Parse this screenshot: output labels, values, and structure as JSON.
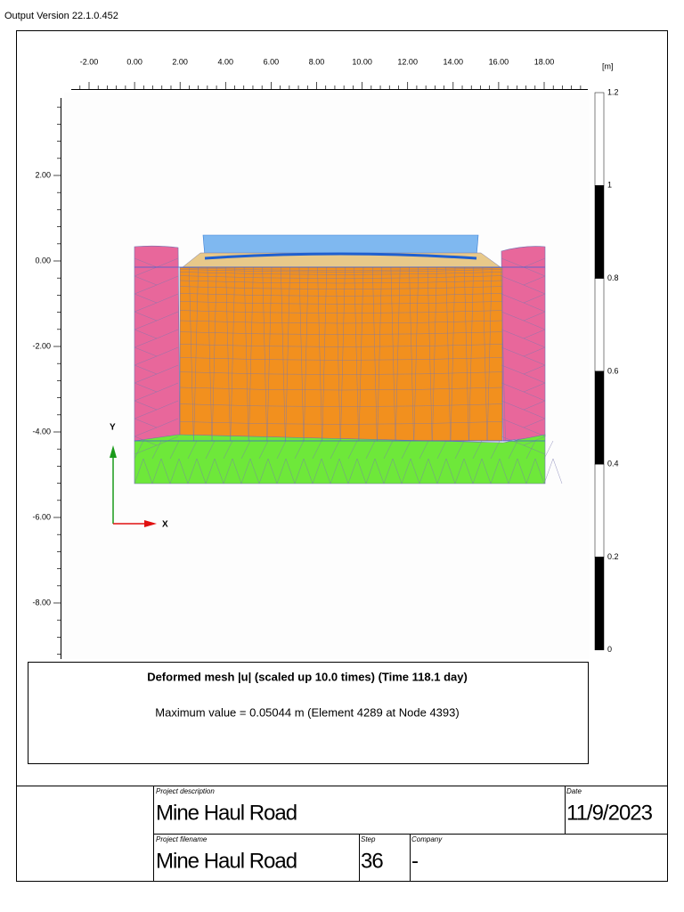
{
  "header": {
    "version": "Output Version 22.1.0.452"
  },
  "plot": {
    "x_tick_labels": [
      "-2.00",
      "0.00",
      "2.00",
      "4.00",
      "6.00",
      "8.00",
      "10.00",
      "12.00",
      "14.00",
      "16.00",
      "18.00"
    ],
    "y_tick_labels": [
      "2.00",
      "0.00",
      "-2.00",
      "-4.00",
      "-6.00",
      "-8.00"
    ],
    "unit": "[m]",
    "legend_labels": [
      "1.2",
      "1",
      "0.8",
      "0.6",
      "0.4",
      "0.2",
      "0"
    ],
    "axis_y": "Y",
    "axis_x": "X"
  },
  "caption": {
    "title": "Deformed mesh |u| (scaled up 10.0 times) (Time 118.1 day)",
    "text": "Maximum value = 0.05044 m (Element 4289 at Node 4393)"
  },
  "footer": {
    "project_description_label": "Project description",
    "project_description": "Mine Haul Road",
    "date_label": "Date",
    "date": "11/9/2023",
    "project_filename_label": "Project filename",
    "project_filename": "Mine Haul Road",
    "step_label": "Step",
    "step": "36",
    "company_label": "Company",
    "company": "-"
  }
}
